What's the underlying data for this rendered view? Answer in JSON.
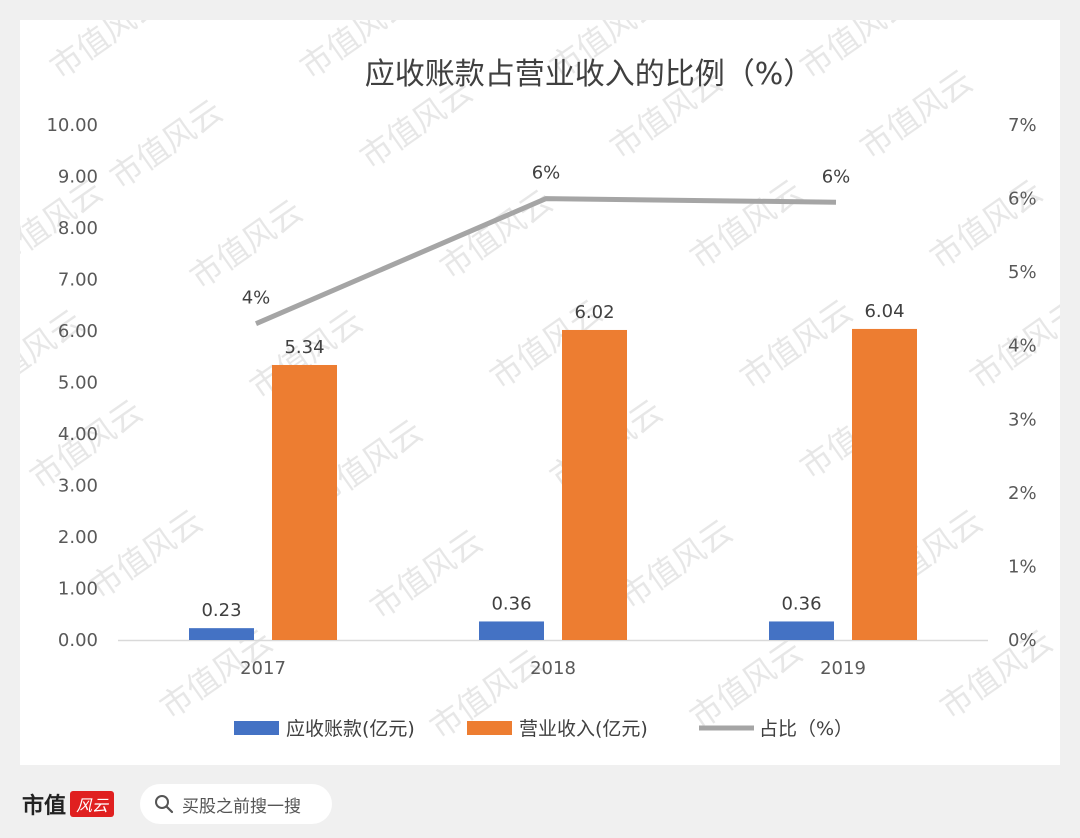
{
  "chart_data": {
    "type": "bar",
    "title": "应收账款占营业收入的比例（%）",
    "categories": [
      "2017",
      "2018",
      "2019"
    ],
    "series": [
      {
        "name": "应收账款(亿元)",
        "type": "bar",
        "axis": "left",
        "color": "#4472c4",
        "values": [
          0.23,
          0.36,
          0.36
        ],
        "labels": [
          "0.23",
          "0.36",
          "0.36"
        ]
      },
      {
        "name": "营业收入(亿元)",
        "type": "bar",
        "axis": "left",
        "color": "#ed7d31",
        "values": [
          5.34,
          6.02,
          6.04
        ],
        "labels": [
          "5.34",
          "6.02",
          "6.04"
        ]
      },
      {
        "name": "占比（%）",
        "type": "line",
        "axis": "right",
        "color": "#a5a5a5",
        "values": [
          4.3,
          6.0,
          5.95
        ],
        "labels": [
          "4%",
          "6%",
          "6%"
        ]
      }
    ],
    "y_left": {
      "ylim": [
        0,
        10
      ],
      "ticks": [
        "0.00",
        "1.00",
        "2.00",
        "3.00",
        "4.00",
        "5.00",
        "6.00",
        "7.00",
        "8.00",
        "9.00",
        "10.00"
      ]
    },
    "y_right": {
      "ylim": [
        0,
        7
      ],
      "ticks": [
        "0%",
        "1%",
        "2%",
        "3%",
        "4%",
        "5%",
        "6%",
        "7%"
      ]
    },
    "grid": false,
    "legend": "bottom"
  },
  "watermark": "市值风云",
  "footer": {
    "logo_main": "市值",
    "logo_badge": "风云",
    "search_placeholder": "买股之前搜一搜"
  }
}
